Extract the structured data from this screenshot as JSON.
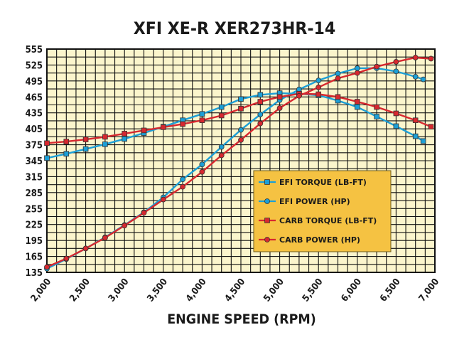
{
  "chart_data": {
    "type": "line",
    "title": "XFI XE-R XER273HR-14",
    "xlabel": "ENGINE SPEED (RPM)",
    "ylabel": "",
    "xlim": [
      2000,
      7000
    ],
    "ylim": [
      135,
      555
    ],
    "x_ticks": [
      "2,000",
      "2,500",
      "3,000",
      "3,500",
      "4,000",
      "4,500",
      "5,000",
      "5,500",
      "6,000",
      "6,500",
      "7,000"
    ],
    "y_ticks": [
      "555",
      "525",
      "495",
      "465",
      "435",
      "405",
      "375",
      "345",
      "315",
      "285",
      "255",
      "225",
      "195",
      "165",
      "135"
    ],
    "grid": true,
    "legend_position": "lower-right",
    "colors": {
      "plot_background": "#fbf5cc",
      "grid": "#111111",
      "legend_background": "#f5c242",
      "efi_line": "#1c9fd6",
      "carb_line": "#d7282f",
      "marker_edge": "#333333"
    },
    "series": [
      {
        "name": "EFI TORQUE (LB-FT)",
        "color": "#1c9fd6",
        "marker": "square",
        "x": [
          2000,
          2250,
          2500,
          2750,
          3000,
          3250,
          3500,
          3750,
          4000,
          4250,
          4500,
          4750,
          5000,
          5250,
          5500,
          5750,
          6000,
          6250,
          6500,
          6750,
          6850
        ],
        "y": [
          350,
          358,
          367,
          376,
          386,
          397,
          409,
          421,
          433,
          446,
          461,
          469,
          472,
          471,
          468,
          458,
          446,
          428,
          410,
          391,
          382
        ]
      },
      {
        "name": "EFI POWER (HP)",
        "color": "#1c9fd6",
        "marker": "circle",
        "x": [
          2000,
          2250,
          2500,
          2750,
          3000,
          3250,
          3500,
          3750,
          4000,
          4250,
          4500,
          4750,
          5000,
          5250,
          5500,
          5750,
          6000,
          6250,
          6500,
          6750,
          6850
        ],
        "y": [
          142,
          160,
          180,
          201,
          224,
          248,
          276,
          310,
          338,
          371,
          403,
          432,
          459,
          479,
          496,
          509,
          519,
          519,
          513,
          503,
          498
        ]
      },
      {
        "name": "CARB TORQUE (LB-FT)",
        "color": "#d7282f",
        "marker": "square",
        "x": [
          2000,
          2250,
          2500,
          2750,
          3000,
          3250,
          3500,
          3750,
          4000,
          4250,
          4500,
          4750,
          5000,
          5250,
          5500,
          5750,
          6000,
          6250,
          6500,
          6750,
          6950
        ],
        "y": [
          378,
          381,
          385,
          390,
          396,
          402,
          408,
          414,
          421,
          430,
          443,
          456,
          465,
          471,
          470,
          465,
          456,
          446,
          434,
          421,
          409
        ]
      },
      {
        "name": "CARB POWER (HP)",
        "color": "#d7282f",
        "marker": "circle",
        "x": [
          2000,
          2250,
          2500,
          2750,
          3000,
          3250,
          3500,
          3750,
          4000,
          4250,
          4500,
          4750,
          5000,
          5250,
          5500,
          5750,
          6000,
          6250,
          6500,
          6750,
          6950
        ],
        "y": [
          145,
          161,
          180,
          200,
          223,
          247,
          272,
          296,
          324,
          355,
          384,
          415,
          444,
          467,
          483,
          500,
          510,
          522,
          531,
          539,
          537
        ]
      }
    ]
  }
}
